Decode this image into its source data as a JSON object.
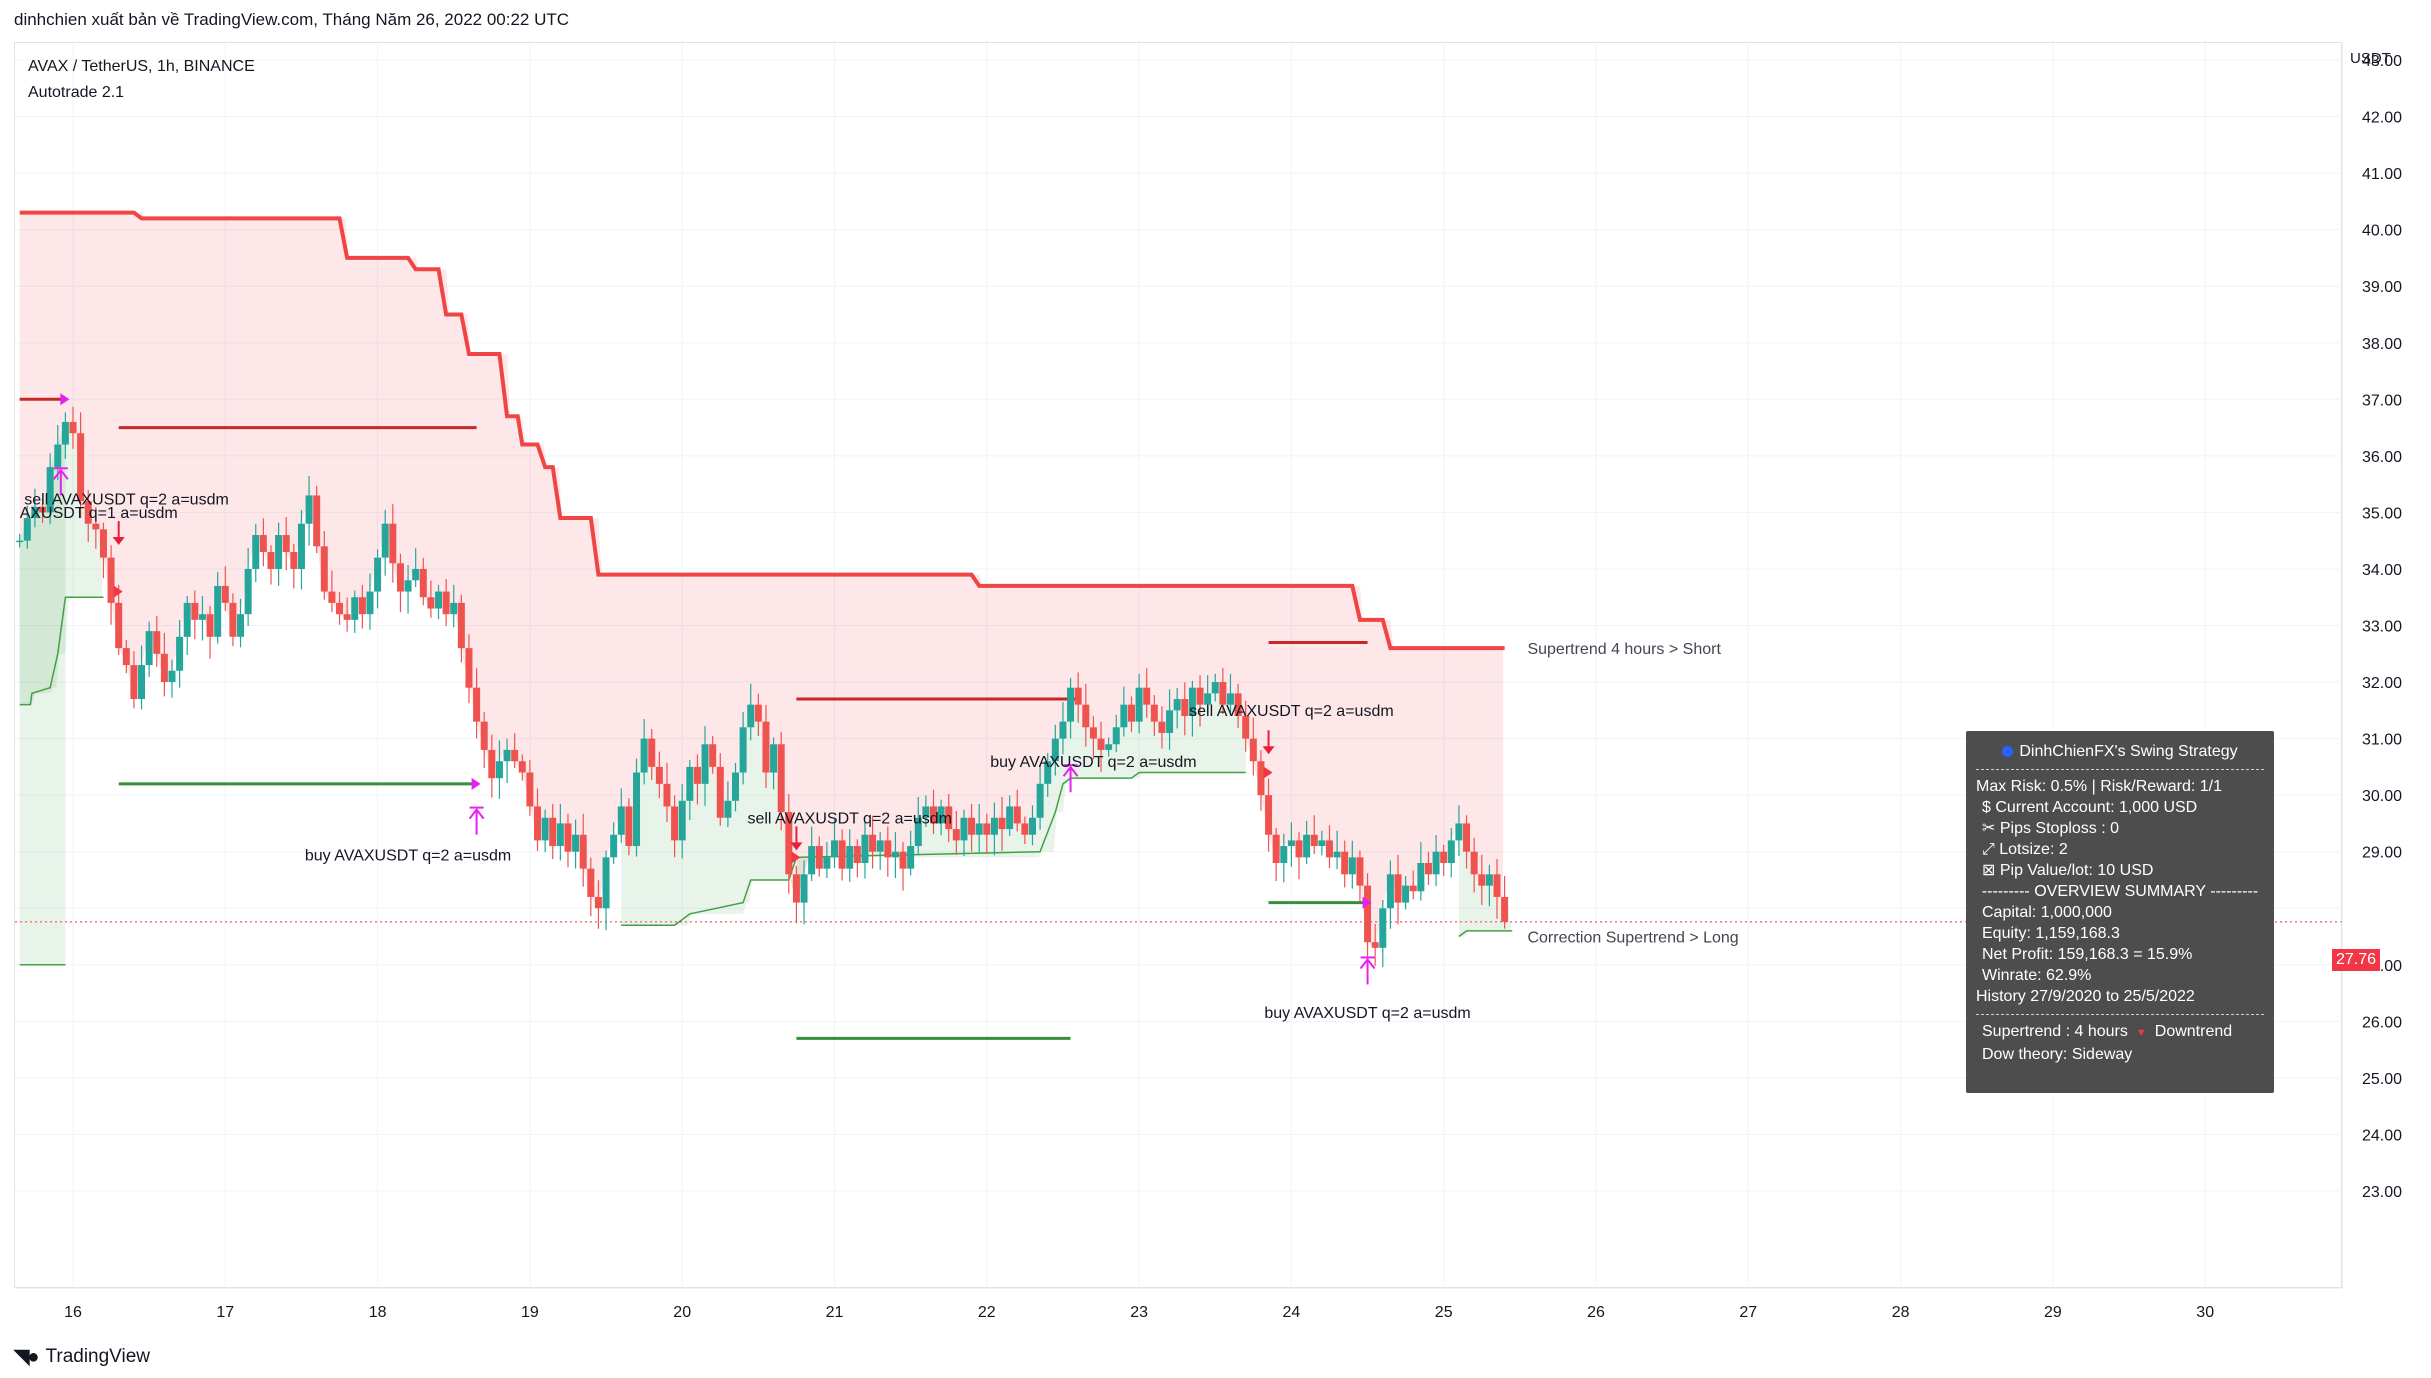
{
  "header": {
    "publish_text": "dinhchien xuất bản về TradingView.com, Tháng Năm 26, 2022 00:22 UTC"
  },
  "symbol": {
    "title": "AVAX / TetherUS, 1h, BINANCE",
    "indicator": "Autotrade 2.1"
  },
  "axis": {
    "unit": "USDT",
    "current_price": "27.76"
  },
  "footer": {
    "brand": "TradingView"
  },
  "panel": {
    "title": "DinhChienFX's Swing Strategy",
    "lines_top": [
      "Max Risk: 0.5% | Risk/Reward: 1/1",
      "$ Current Account: 1,000 USD",
      "✂ Pips Stoploss : 0",
      "⤢ Lotsize: 2",
      "⊠ Pip Value/lot: 10 USD"
    ],
    "overview_header": "--------- OVERVIEW SUMMARY ---------",
    "lines_overview": [
      "Capital: 1,000,000",
      "Equity: 1,159,168.3",
      "Net Profit: 159,168.3 = 15.9%",
      "Winrate: 62.9%"
    ],
    "history": "History 27/9/2020 to 25/5/2022",
    "supertrend_label": "Supertrend : 4 hours",
    "supertrend_state": "Downtrend",
    "dow": "Dow theory: Sideway"
  },
  "colors": {
    "up": "#26a69a",
    "down": "#ef5350",
    "supertrend_short": "#f04545",
    "supertrend_long": "#43a047",
    "signal_arrow": "#e91ef0",
    "entry_short": "#c62828",
    "entry_long": "#388e3c"
  },
  "chart_data": {
    "type": "candlestick",
    "title": "AVAX / TetherUS, 1h, BINANCE",
    "y_axis": {
      "min": 22.0,
      "max": 43.5,
      "ticks": [
        23,
        24,
        25,
        26,
        27,
        28,
        29,
        30,
        31,
        32,
        33,
        34,
        35,
        36,
        37,
        38,
        39,
        40,
        41,
        42,
        43
      ],
      "position": "right",
      "unit": "USDT"
    },
    "x_axis": {
      "day_ticks": [
        "16",
        "17",
        "18",
        "19",
        "20",
        "21",
        "22",
        "23",
        "24",
        "25",
        "26",
        "27",
        "28",
        "29",
        "30"
      ],
      "day_start": 15.65,
      "day_end": 30.95
    },
    "close_path": [
      [
        15.65,
        34.5
      ],
      [
        15.7,
        34.9
      ],
      [
        15.75,
        35.1
      ],
      [
        15.8,
        35.0
      ],
      [
        15.85,
        35.8
      ],
      [
        15.9,
        36.2
      ],
      [
        15.95,
        36.6
      ],
      [
        16.0,
        36.4
      ],
      [
        16.05,
        35.2
      ],
      [
        16.1,
        34.8
      ],
      [
        16.15,
        34.7
      ],
      [
        16.2,
        34.2
      ],
      [
        16.25,
        33.4
      ],
      [
        16.3,
        32.6
      ],
      [
        16.35,
        32.3
      ],
      [
        16.4,
        31.7
      ],
      [
        16.45,
        32.3
      ],
      [
        16.5,
        32.9
      ],
      [
        16.55,
        32.5
      ],
      [
        16.6,
        32.0
      ],
      [
        16.65,
        32.2
      ],
      [
        16.7,
        32.8
      ],
      [
        16.75,
        33.4
      ],
      [
        16.8,
        33.1
      ],
      [
        16.85,
        33.2
      ],
      [
        16.9,
        32.8
      ],
      [
        16.95,
        33.7
      ],
      [
        17.0,
        33.4
      ],
      [
        17.05,
        32.8
      ],
      [
        17.1,
        33.2
      ],
      [
        17.15,
        34.0
      ],
      [
        17.2,
        34.6
      ],
      [
        17.25,
        34.3
      ],
      [
        17.3,
        34.0
      ],
      [
        17.35,
        34.6
      ],
      [
        17.4,
        34.3
      ],
      [
        17.45,
        34.0
      ],
      [
        17.5,
        34.8
      ],
      [
        17.55,
        35.3
      ],
      [
        17.6,
        34.4
      ],
      [
        17.65,
        33.6
      ],
      [
        17.7,
        33.4
      ],
      [
        17.75,
        33.2
      ],
      [
        17.8,
        33.1
      ],
      [
        17.85,
        33.5
      ],
      [
        17.9,
        33.2
      ],
      [
        17.95,
        33.6
      ],
      [
        18.0,
        34.2
      ],
      [
        18.05,
        34.8
      ],
      [
        18.1,
        34.1
      ],
      [
        18.15,
        33.6
      ],
      [
        18.2,
        33.8
      ],
      [
        18.25,
        34.0
      ],
      [
        18.3,
        33.5
      ],
      [
        18.35,
        33.3
      ],
      [
        18.4,
        33.6
      ],
      [
        18.45,
        33.2
      ],
      [
        18.5,
        33.4
      ],
      [
        18.55,
        32.6
      ],
      [
        18.6,
        31.9
      ],
      [
        18.65,
        31.3
      ],
      [
        18.7,
        30.8
      ],
      [
        18.75,
        30.3
      ],
      [
        18.8,
        30.6
      ],
      [
        18.85,
        30.8
      ],
      [
        18.9,
        30.6
      ],
      [
        18.95,
        30.4
      ],
      [
        19.0,
        29.8
      ],
      [
        19.05,
        29.2
      ],
      [
        19.1,
        29.6
      ],
      [
        19.15,
        29.1
      ],
      [
        19.2,
        29.5
      ],
      [
        19.25,
        29.0
      ],
      [
        19.3,
        29.3
      ],
      [
        19.35,
        28.7
      ],
      [
        19.4,
        28.2
      ],
      [
        19.45,
        28.0
      ],
      [
        19.5,
        28.9
      ],
      [
        19.55,
        29.3
      ],
      [
        19.6,
        29.8
      ],
      [
        19.65,
        29.1
      ],
      [
        19.7,
        30.4
      ],
      [
        19.75,
        31.0
      ],
      [
        19.8,
        30.5
      ],
      [
        19.85,
        30.2
      ],
      [
        19.9,
        29.8
      ],
      [
        19.95,
        29.2
      ],
      [
        20.0,
        29.9
      ],
      [
        20.05,
        30.5
      ],
      [
        20.1,
        30.2
      ],
      [
        20.15,
        30.9
      ],
      [
        20.2,
        30.5
      ],
      [
        20.25,
        29.6
      ],
      [
        20.3,
        29.9
      ],
      [
        20.35,
        30.4
      ],
      [
        20.4,
        31.2
      ],
      [
        20.45,
        31.6
      ],
      [
        20.5,
        31.3
      ],
      [
        20.55,
        30.4
      ],
      [
        20.6,
        30.9
      ],
      [
        20.65,
        29.7
      ],
      [
        20.7,
        28.6
      ],
      [
        20.75,
        28.1
      ],
      [
        20.8,
        28.6
      ],
      [
        20.85,
        29.1
      ],
      [
        20.9,
        28.7
      ],
      [
        20.95,
        28.9
      ],
      [
        21.0,
        29.2
      ],
      [
        21.05,
        28.7
      ],
      [
        21.1,
        29.1
      ],
      [
        21.15,
        28.8
      ],
      [
        21.2,
        29.3
      ],
      [
        21.25,
        29.0
      ],
      [
        21.3,
        29.2
      ],
      [
        21.35,
        28.9
      ],
      [
        21.4,
        29.0
      ],
      [
        21.45,
        28.7
      ],
      [
        21.5,
        29.1
      ],
      [
        21.55,
        29.6
      ],
      [
        21.6,
        29.8
      ],
      [
        21.65,
        29.5
      ],
      [
        21.7,
        29.8
      ],
      [
        21.75,
        29.4
      ],
      [
        21.8,
        29.2
      ],
      [
        21.85,
        29.6
      ],
      [
        21.9,
        29.3
      ],
      [
        21.95,
        29.5
      ],
      [
        22.0,
        29.3
      ],
      [
        22.05,
        29.6
      ],
      [
        22.1,
        29.4
      ],
      [
        22.15,
        29.8
      ],
      [
        22.2,
        29.5
      ],
      [
        22.25,
        29.3
      ],
      [
        22.3,
        29.6
      ],
      [
        22.35,
        30.2
      ],
      [
        22.4,
        30.6
      ],
      [
        22.45,
        31.0
      ],
      [
        22.5,
        31.3
      ],
      [
        22.55,
        31.9
      ],
      [
        22.6,
        31.6
      ],
      [
        22.65,
        31.2
      ],
      [
        22.7,
        31.0
      ],
      [
        22.75,
        30.8
      ],
      [
        22.8,
        30.9
      ],
      [
        22.85,
        31.2
      ],
      [
        22.9,
        31.6
      ],
      [
        22.95,
        31.3
      ],
      [
        23.0,
        31.9
      ],
      [
        23.05,
        31.6
      ],
      [
        23.1,
        31.3
      ],
      [
        23.15,
        31.1
      ],
      [
        23.2,
        31.5
      ],
      [
        23.25,
        31.7
      ],
      [
        23.3,
        31.4
      ],
      [
        23.35,
        31.9
      ],
      [
        23.4,
        31.6
      ],
      [
        23.45,
        31.8
      ],
      [
        23.5,
        32.0
      ],
      [
        23.55,
        31.6
      ],
      [
        23.6,
        31.8
      ],
      [
        23.65,
        31.4
      ],
      [
        23.7,
        31.0
      ],
      [
        23.75,
        30.6
      ],
      [
        23.8,
        30.0
      ],
      [
        23.85,
        29.3
      ],
      [
        23.9,
        28.8
      ],
      [
        23.95,
        29.1
      ],
      [
        24.0,
        29.2
      ],
      [
        24.05,
        28.9
      ],
      [
        24.1,
        29.3
      ],
      [
        24.15,
        29.1
      ],
      [
        24.2,
        29.2
      ],
      [
        24.25,
        28.9
      ],
      [
        24.3,
        29.0
      ],
      [
        24.35,
        28.6
      ],
      [
        24.4,
        28.9
      ],
      [
        24.45,
        28.4
      ],
      [
        24.5,
        27.4
      ],
      [
        24.55,
        27.3
      ],
      [
        24.6,
        28.0
      ],
      [
        24.65,
        28.6
      ],
      [
        24.7,
        28.1
      ],
      [
        24.75,
        28.4
      ],
      [
        24.8,
        28.3
      ],
      [
        24.85,
        28.8
      ],
      [
        24.9,
        28.6
      ],
      [
        24.95,
        29.0
      ],
      [
        25.0,
        28.8
      ],
      [
        25.05,
        29.2
      ],
      [
        25.1,
        29.5
      ],
      [
        25.15,
        29.0
      ],
      [
        25.2,
        28.6
      ],
      [
        25.25,
        28.4
      ],
      [
        25.3,
        28.6
      ],
      [
        25.35,
        28.2
      ],
      [
        25.4,
        27.76
      ]
    ],
    "supertrend_short": [
      [
        15.65,
        40.3
      ],
      [
        16.4,
        40.3
      ],
      [
        16.45,
        40.2
      ],
      [
        17.75,
        40.2
      ],
      [
        17.8,
        39.5
      ],
      [
        18.2,
        39.5
      ],
      [
        18.25,
        39.3
      ],
      [
        18.4,
        39.3
      ],
      [
        18.45,
        38.5
      ],
      [
        18.55,
        38.5
      ],
      [
        18.6,
        37.8
      ],
      [
        18.8,
        37.8
      ],
      [
        18.85,
        36.7
      ],
      [
        18.92,
        36.7
      ],
      [
        18.95,
        36.2
      ],
      [
        19.05,
        36.2
      ],
      [
        19.1,
        35.8
      ],
      [
        19.15,
        35.8
      ],
      [
        19.2,
        34.9
      ],
      [
        19.4,
        34.9
      ],
      [
        19.45,
        33.9
      ],
      [
        21.9,
        33.9
      ],
      [
        21.95,
        33.7
      ],
      [
        24.4,
        33.7
      ],
      [
        24.45,
        33.1
      ],
      [
        24.6,
        33.1
      ],
      [
        24.65,
        32.6
      ],
      [
        25.4,
        32.6
      ]
    ],
    "supertrend_long_segments": [
      [
        [
          15.65,
          31.6
        ],
        [
          15.72,
          31.6
        ],
        [
          15.73,
          31.8
        ],
        [
          15.85,
          31.9
        ],
        [
          15.9,
          32.5
        ],
        [
          15.95,
          33.5
        ],
        [
          16.2,
          33.5
        ]
      ],
      [
        [
          19.6,
          27.7
        ],
        [
          19.95,
          27.7
        ],
        [
          20.05,
          27.9
        ],
        [
          20.4,
          28.1
        ],
        [
          20.45,
          28.5
        ],
        [
          20.7,
          28.5
        ],
        [
          20.75,
          28.9
        ],
        [
          22.35,
          29.0
        ],
        [
          22.45,
          29.7
        ],
        [
          22.5,
          30.2
        ],
        [
          22.55,
          30.3
        ],
        [
          22.95,
          30.3
        ],
        [
          23.0,
          30.4
        ],
        [
          23.7,
          30.4
        ]
      ],
      [
        [
          25.1,
          27.5
        ],
        [
          25.15,
          27.6
        ],
        [
          25.45,
          27.6
        ]
      ],
      [
        [
          15.65,
          27.0
        ],
        [
          15.95,
          27.0
        ]
      ]
    ],
    "entry_lines_short": [
      {
        "x": [
          16.3,
          18.65
        ],
        "y": 36.5
      },
      {
        "x": [
          20.75,
          22.6
        ],
        "y": 31.7
      },
      {
        "x": [
          23.85,
          24.5
        ],
        "y": 32.7
      }
    ],
    "entry_lines_long": [
      {
        "x": [
          16.3,
          18.65
        ],
        "y": 30.2
      },
      {
        "x": [
          20.75,
          22.55
        ],
        "y": 25.7
      },
      {
        "x": [
          23.85,
          24.5
        ],
        "y": 28.1
      }
    ],
    "short_prev_line": {
      "x": [
        15.65,
        15.95
      ],
      "y": 37.0
    },
    "signals": [
      {
        "type": "buy",
        "x": 15.92,
        "y": 35.55,
        "text": "AXUSDT q=1 a=usdm",
        "text_x": 15.65,
        "text_y": 34.9,
        "anchor": "start"
      },
      {
        "type": "sell",
        "x": 16.3,
        "y": 34.6,
        "text": "sell AVAXUSDT q=2 a=usdm",
        "text_x": 15.68,
        "text_y": 35.14,
        "anchor": "start"
      },
      {
        "type": "buy",
        "x": 18.65,
        "y": 29.55,
        "text": "buy AVAXUSDT q=2 a=usdm",
        "text_x": 18.2,
        "text_y": 28.84,
        "anchor": "middle"
      },
      {
        "type": "sell",
        "x": 20.75,
        "y": 29.2,
        "text": "sell AVAXUSDT q=2 a=usdm",
        "text_x": 21.1,
        "text_y": 29.5,
        "anchor": "middle"
      },
      {
        "type": "buy",
        "x": 22.55,
        "y": 30.3,
        "text": "buy AVAXUSDT q=2 a=usdm",
        "text_x": 22.7,
        "text_y": 30.5,
        "anchor": "middle"
      },
      {
        "type": "sell",
        "x": 23.85,
        "y": 30.9,
        "text": "sell AVAXUSDT q=2 a=usdm",
        "text_x": 24.0,
        "text_y": 31.4,
        "anchor": "middle"
      },
      {
        "type": "buy",
        "x": 24.5,
        "y": 26.9,
        "text": "buy AVAXUSDT q=2 a=usdm",
        "text_x": 24.5,
        "text_y": 26.06,
        "anchor": "middle"
      }
    ],
    "annotations": [
      {
        "text": "Supertrend 4 hours > Short",
        "x": 25.55,
        "y": 32.6
      },
      {
        "text": "Correction Supertrend  > Long",
        "x": 25.55,
        "y": 27.5
      }
    ],
    "current_price_line": 27.76
  }
}
